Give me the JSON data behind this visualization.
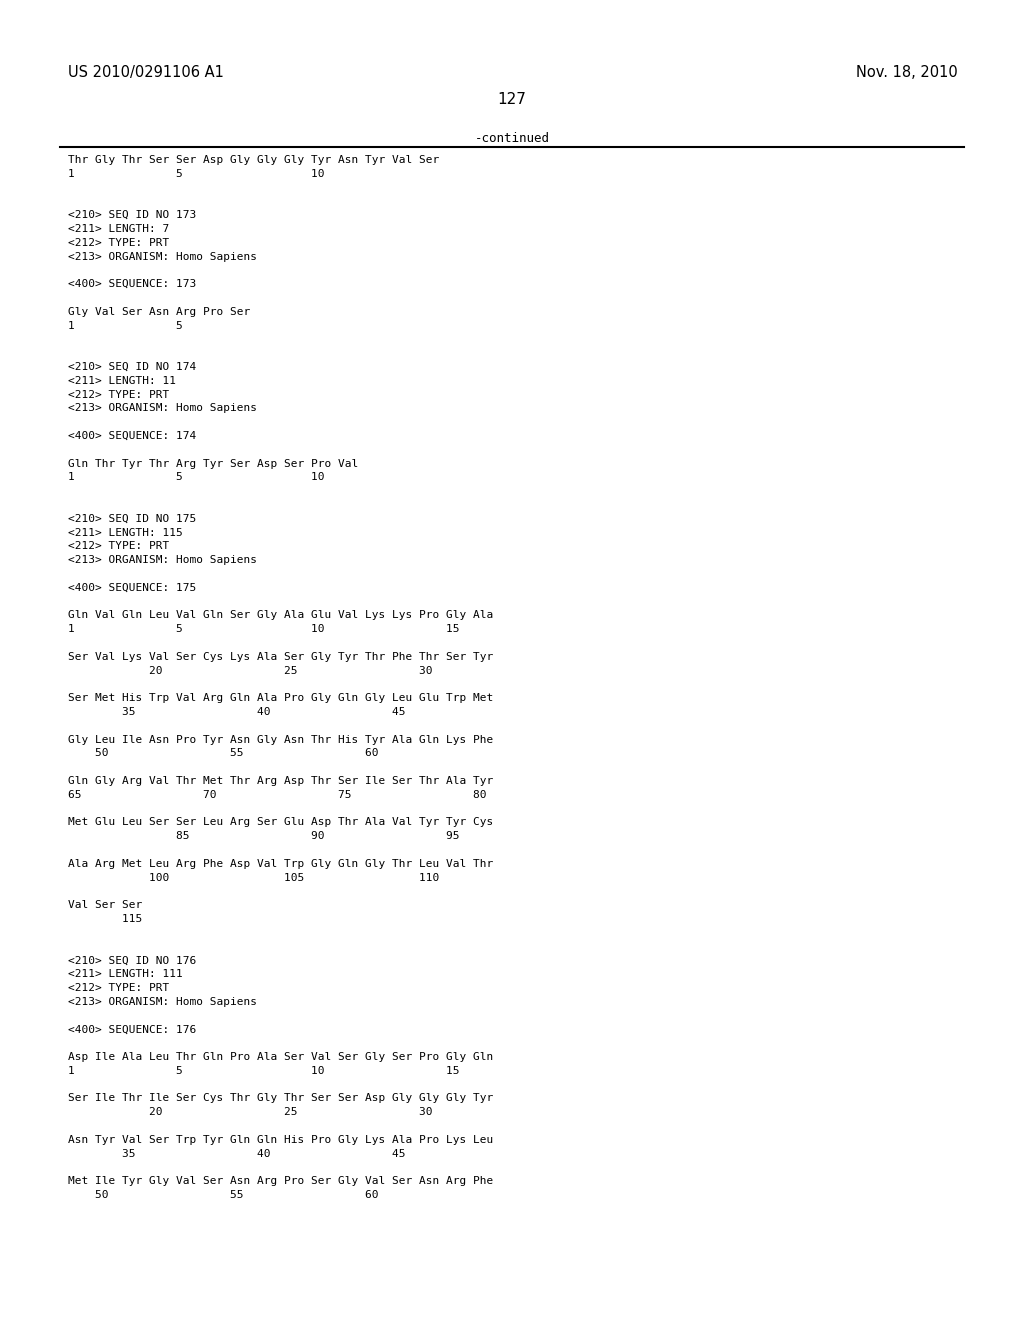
{
  "header_left": "US 2010/0291106 A1",
  "header_right": "Nov. 18, 2010",
  "page_number": "127",
  "continued_label": "-continued",
  "background_color": "#ffffff",
  "text_color": "#000000",
  "font_size": 8.0,
  "mono_font": "DejaVu Sans Mono",
  "lines": [
    "Thr Gly Thr Ser Ser Asp Gly Gly Gly Tyr Asn Tyr Val Ser",
    "1               5                   10",
    "",
    "",
    "<210> SEQ ID NO 173",
    "<211> LENGTH: 7",
    "<212> TYPE: PRT",
    "<213> ORGANISM: Homo Sapiens",
    "",
    "<400> SEQUENCE: 173",
    "",
    "Gly Val Ser Asn Arg Pro Ser",
    "1               5",
    "",
    "",
    "<210> SEQ ID NO 174",
    "<211> LENGTH: 11",
    "<212> TYPE: PRT",
    "<213> ORGANISM: Homo Sapiens",
    "",
    "<400> SEQUENCE: 174",
    "",
    "Gln Thr Tyr Thr Arg Tyr Ser Asp Ser Pro Val",
    "1               5                   10",
    "",
    "",
    "<210> SEQ ID NO 175",
    "<211> LENGTH: 115",
    "<212> TYPE: PRT",
    "<213> ORGANISM: Homo Sapiens",
    "",
    "<400> SEQUENCE: 175",
    "",
    "Gln Val Gln Leu Val Gln Ser Gly Ala Glu Val Lys Lys Pro Gly Ala",
    "1               5                   10                  15",
    "",
    "Ser Val Lys Val Ser Cys Lys Ala Ser Gly Tyr Thr Phe Thr Ser Tyr",
    "            20                  25                  30",
    "",
    "Ser Met His Trp Val Arg Gln Ala Pro Gly Gln Gly Leu Glu Trp Met",
    "        35                  40                  45",
    "",
    "Gly Leu Ile Asn Pro Tyr Asn Gly Asn Thr His Tyr Ala Gln Lys Phe",
    "    50                  55                  60",
    "",
    "Gln Gly Arg Val Thr Met Thr Arg Asp Thr Ser Ile Ser Thr Ala Tyr",
    "65                  70                  75                  80",
    "",
    "Met Glu Leu Ser Ser Leu Arg Ser Glu Asp Thr Ala Val Tyr Tyr Cys",
    "                85                  90                  95",
    "",
    "Ala Arg Met Leu Arg Phe Asp Val Trp Gly Gln Gly Thr Leu Val Thr",
    "            100                 105                 110",
    "",
    "Val Ser Ser",
    "        115",
    "",
    "",
    "<210> SEQ ID NO 176",
    "<211> LENGTH: 111",
    "<212> TYPE: PRT",
    "<213> ORGANISM: Homo Sapiens",
    "",
    "<400> SEQUENCE: 176",
    "",
    "Asp Ile Ala Leu Thr Gln Pro Ala Ser Val Ser Gly Ser Pro Gly Gln",
    "1               5                   10                  15",
    "",
    "Ser Ile Thr Ile Ser Cys Thr Gly Thr Ser Ser Asp Gly Gly Gly Tyr",
    "            20                  25                  30",
    "",
    "Asn Tyr Val Ser Trp Tyr Gln Gln His Pro Gly Lys Ala Pro Lys Leu",
    "        35                  40                  45",
    "",
    "Met Ile Tyr Gly Val Ser Asn Arg Pro Ser Gly Val Ser Asn Arg Phe",
    "    50                  55                  60"
  ]
}
